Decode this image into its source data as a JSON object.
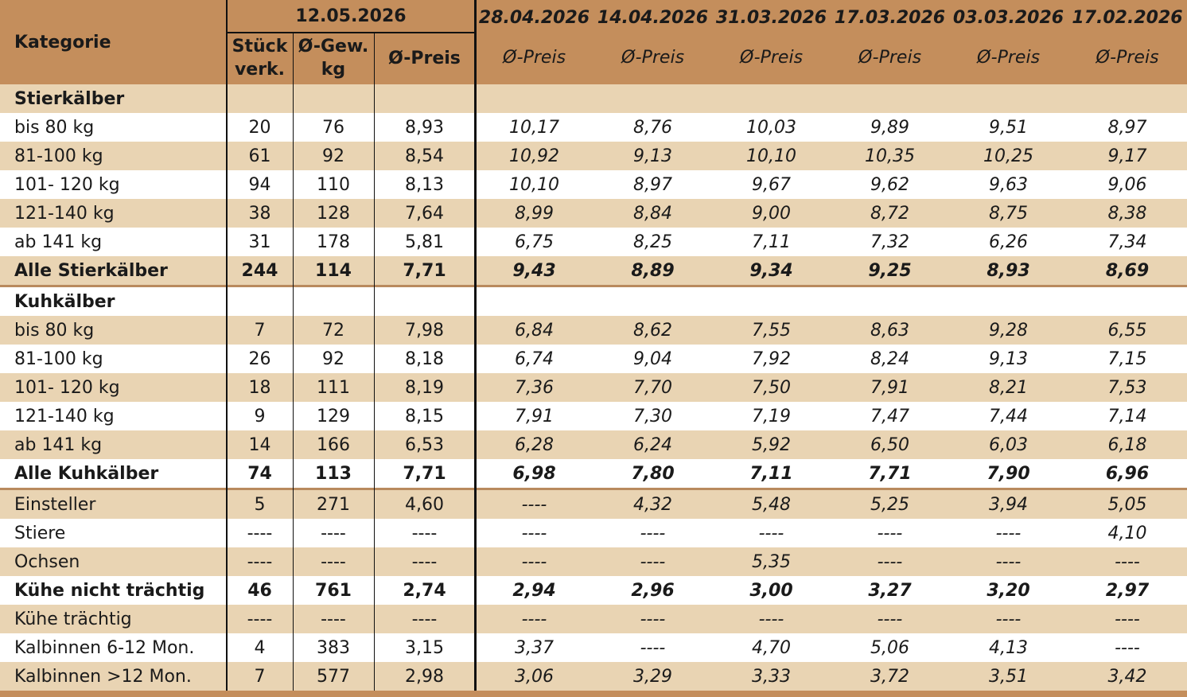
{
  "header": {
    "category": "Kategorie",
    "current": {
      "date": "12.05.2026",
      "columns": [
        "Stück verk.",
        "Ø-Gew. kg",
        "Ø-Preis"
      ]
    },
    "past": [
      {
        "date": "28.04.2026",
        "label": "Ø-Preis"
      },
      {
        "date": "14.04.2026",
        "label": "Ø-Preis"
      },
      {
        "date": "31.03.2026",
        "label": "Ø-Preis"
      },
      {
        "date": "17.03.2026",
        "label": "Ø-Preis"
      },
      {
        "date": "03.03.2026",
        "label": "Ø-Preis"
      },
      {
        "date": "17.02.2026",
        "label": "Ø-Preis"
      }
    ]
  },
  "rows": [
    {
      "label": "Stierkälber",
      "bold": true
    },
    {
      "label": "bis 80 kg",
      "values": [
        "20",
        "76",
        "8,93",
        "10,17",
        "8,76",
        "10,03",
        "9,89",
        "9,51",
        "8,97"
      ]
    },
    {
      "label": "81-100 kg",
      "values": [
        "61",
        "92",
        "8,54",
        "10,92",
        "9,13",
        "10,10",
        "10,35",
        "10,25",
        "9,17"
      ]
    },
    {
      "label": "101- 120 kg",
      "values": [
        "94",
        "110",
        "8,13",
        "10,10",
        "8,97",
        "9,67",
        "9,62",
        "9,63",
        "9,06"
      ]
    },
    {
      "label": "121-140 kg",
      "values": [
        "38",
        "128",
        "7,64",
        "8,99",
        "8,84",
        "9,00",
        "8,72",
        "8,75",
        "8,38"
      ]
    },
    {
      "label": "ab 141 kg",
      "values": [
        "31",
        "178",
        "5,81",
        "6,75",
        "8,25",
        "7,11",
        "7,32",
        "6,26",
        "7,34"
      ]
    },
    {
      "label": "Alle Stierkälber",
      "bold": true,
      "values": [
        "244",
        "114",
        "7,71",
        "9,43",
        "8,89",
        "9,34",
        "9,25",
        "8,93",
        "8,69"
      ]
    },
    {
      "label": "Kuhkälber",
      "bold": true
    },
    {
      "label": "bis 80 kg",
      "values": [
        "7",
        "72",
        "7,98",
        "6,84",
        "8,62",
        "7,55",
        "8,63",
        "9,28",
        "6,55"
      ]
    },
    {
      "label": "81-100 kg",
      "values": [
        "26",
        "92",
        "8,18",
        "6,74",
        "9,04",
        "7,92",
        "8,24",
        "9,13",
        "7,15"
      ]
    },
    {
      "label": "101- 120 kg",
      "values": [
        "18",
        "111",
        "8,19",
        "7,36",
        "7,70",
        "7,50",
        "7,91",
        "8,21",
        "7,53"
      ]
    },
    {
      "label": "121-140 kg",
      "values": [
        "9",
        "129",
        "8,15",
        "7,91",
        "7,30",
        "7,19",
        "7,47",
        "7,44",
        "7,14"
      ]
    },
    {
      "label": "ab 141 kg",
      "values": [
        "14",
        "166",
        "6,53",
        "6,28",
        "6,24",
        "5,92",
        "6,50",
        "6,03",
        "6,18"
      ]
    },
    {
      "label": "Alle Kuhkälber",
      "bold": true,
      "values": [
        "74",
        "113",
        "7,71",
        "6,98",
        "7,80",
        "7,11",
        "7,71",
        "7,90",
        "6,96"
      ]
    },
    {
      "label": "Einsteller",
      "values": [
        "5",
        "271",
        "4,60",
        "----",
        "4,32",
        "5,48",
        "5,25",
        "3,94",
        "5,05"
      ]
    },
    {
      "label": "Stiere",
      "values": [
        "----",
        "----",
        "----",
        "----",
        "----",
        "----",
        "----",
        "----",
        "4,10"
      ]
    },
    {
      "label": "Ochsen",
      "values": [
        "----",
        "----",
        "----",
        "----",
        "----",
        "5,35",
        "----",
        "----",
        "----"
      ]
    },
    {
      "label": "Kühe nicht trächtig",
      "bold": true,
      "values": [
        "46",
        "761",
        "2,74",
        "2,94",
        "2,96",
        "3,00",
        "3,27",
        "3,20",
        "2,97"
      ]
    },
    {
      "label": "Kühe trächtig",
      "values": [
        "----",
        "----",
        "----",
        "----",
        "----",
        "----",
        "----",
        "----",
        "----"
      ]
    },
    {
      "label": "Kalbinnen 6-12 Mon.",
      "values": [
        "4",
        "383",
        "3,15",
        "3,37",
        "----",
        "4,70",
        "5,06",
        "4,13",
        "----"
      ]
    },
    {
      "label": "Kalbinnen >12 Mon.",
      "values": [
        "7",
        "577",
        "2,98",
        "3,06",
        "3,29",
        "3,33",
        "3,72",
        "3,51",
        "3,42"
      ]
    }
  ]
}
